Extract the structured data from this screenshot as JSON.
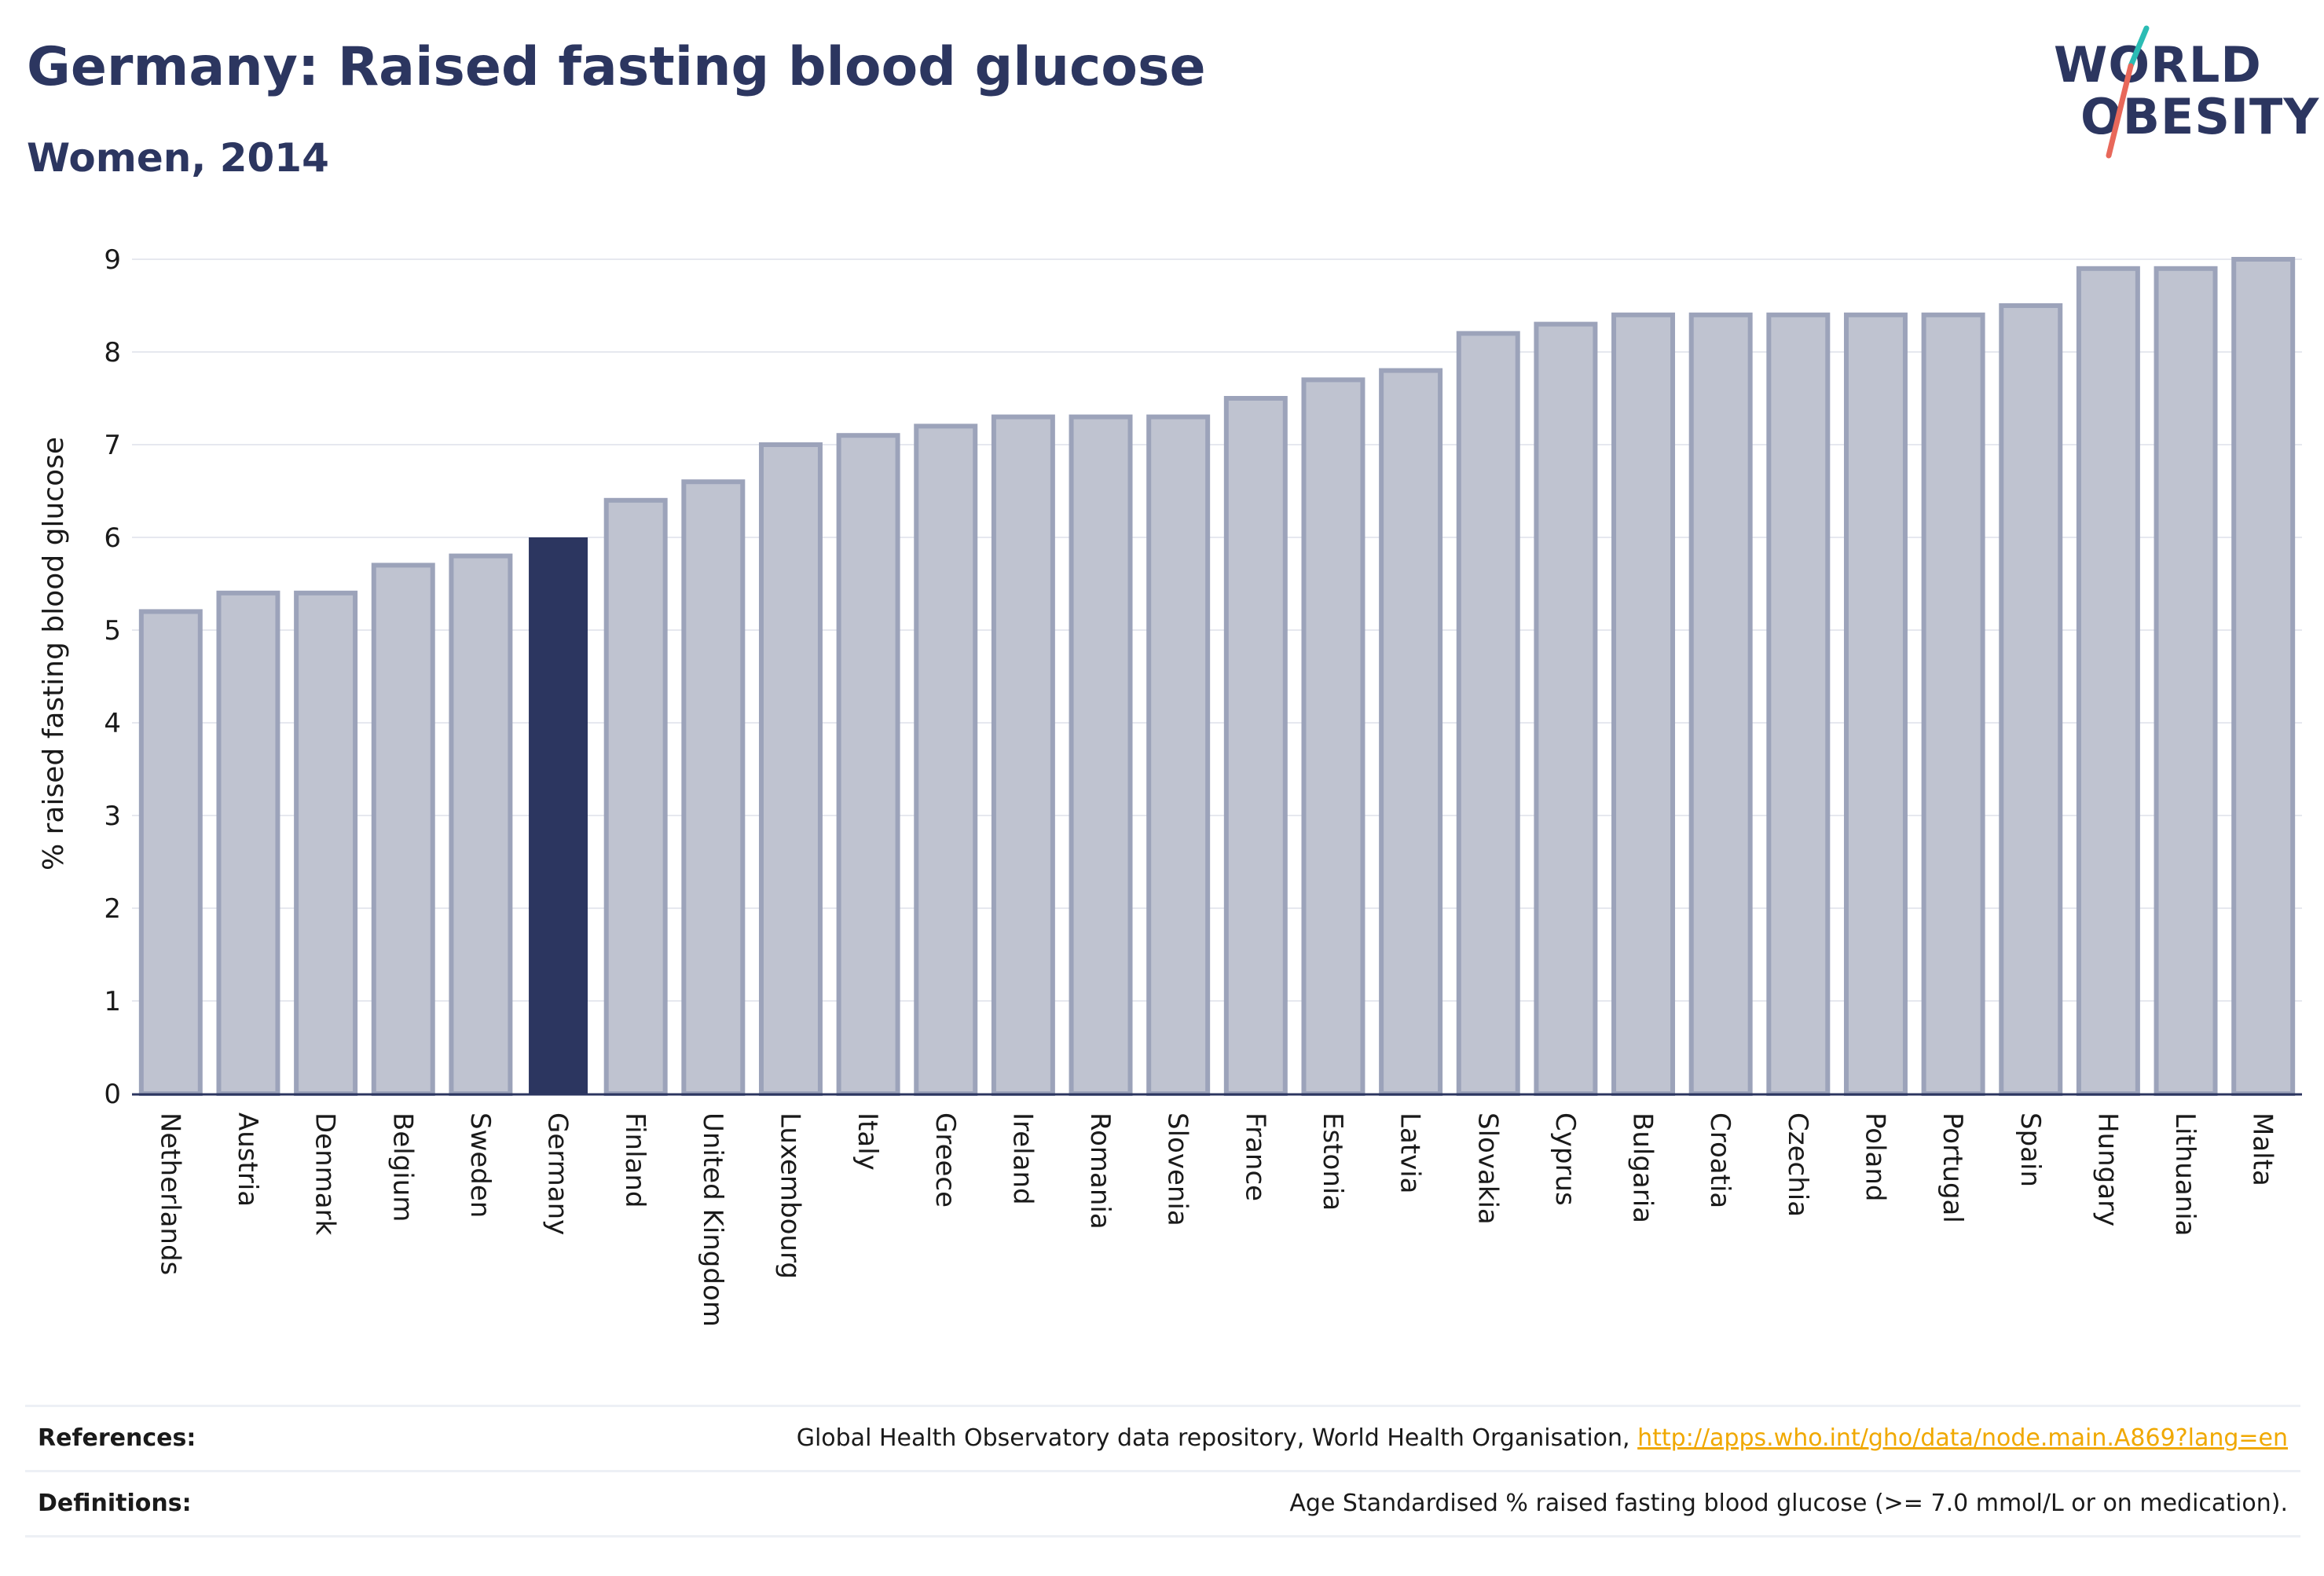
{
  "header": {
    "title": "Germany: Raised fasting blood glucose",
    "subtitle": "Women, 2014"
  },
  "logo": {
    "line1": "WORLD",
    "line2": "OBESITY",
    "slash_colors": [
      "#2bbcb4",
      "#e8685a"
    ]
  },
  "colors": {
    "bar_fill": "#bfc3d0",
    "bar_stroke": "#9ca3ba",
    "highlight_fill": "#2c3660",
    "text": "#2c3660",
    "grid": "#e6e8ef",
    "link": "#f0a800"
  },
  "chart_data": {
    "type": "bar",
    "title": "Germany: Raised fasting blood glucose",
    "subtitle": "Women, 2014",
    "ylabel": "% raised fasting blood glucose",
    "xlabel": "",
    "ylim": [
      0,
      9
    ],
    "yticks": [
      0,
      1,
      2,
      3,
      4,
      5,
      6,
      7,
      8,
      9
    ],
    "grid": true,
    "highlight": "Germany",
    "categories": [
      "Netherlands",
      "Austria",
      "Denmark",
      "Belgium",
      "Sweden",
      "Germany",
      "Finland",
      "United Kingdom",
      "Luxembourg",
      "Italy",
      "Greece",
      "Ireland",
      "Romania",
      "Slovenia",
      "France",
      "Estonia",
      "Latvia",
      "Slovakia",
      "Cyprus",
      "Bulgaria",
      "Croatia",
      "Czechia",
      "Poland",
      "Portugal",
      "Spain",
      "Hungary",
      "Lithuania",
      "Malta"
    ],
    "values": [
      5.2,
      5.4,
      5.4,
      5.7,
      5.8,
      6.0,
      6.4,
      6.6,
      7.0,
      7.1,
      7.2,
      7.3,
      7.3,
      7.3,
      7.5,
      7.7,
      7.8,
      8.2,
      8.3,
      8.4,
      8.4,
      8.4,
      8.4,
      8.4,
      8.5,
      8.9,
      8.9,
      9.0
    ]
  },
  "footer": {
    "references_label": "References:",
    "references_text": "Global Health Observatory data repository, World Health Organisation,",
    "references_link": "http://apps.who.int/gho/data/node.main.A869?lang=en",
    "definitions_label": "Definitions:",
    "definitions_text": "Age Standardised % raised fasting blood glucose (>= 7.0 mmol/L or on medication)."
  }
}
